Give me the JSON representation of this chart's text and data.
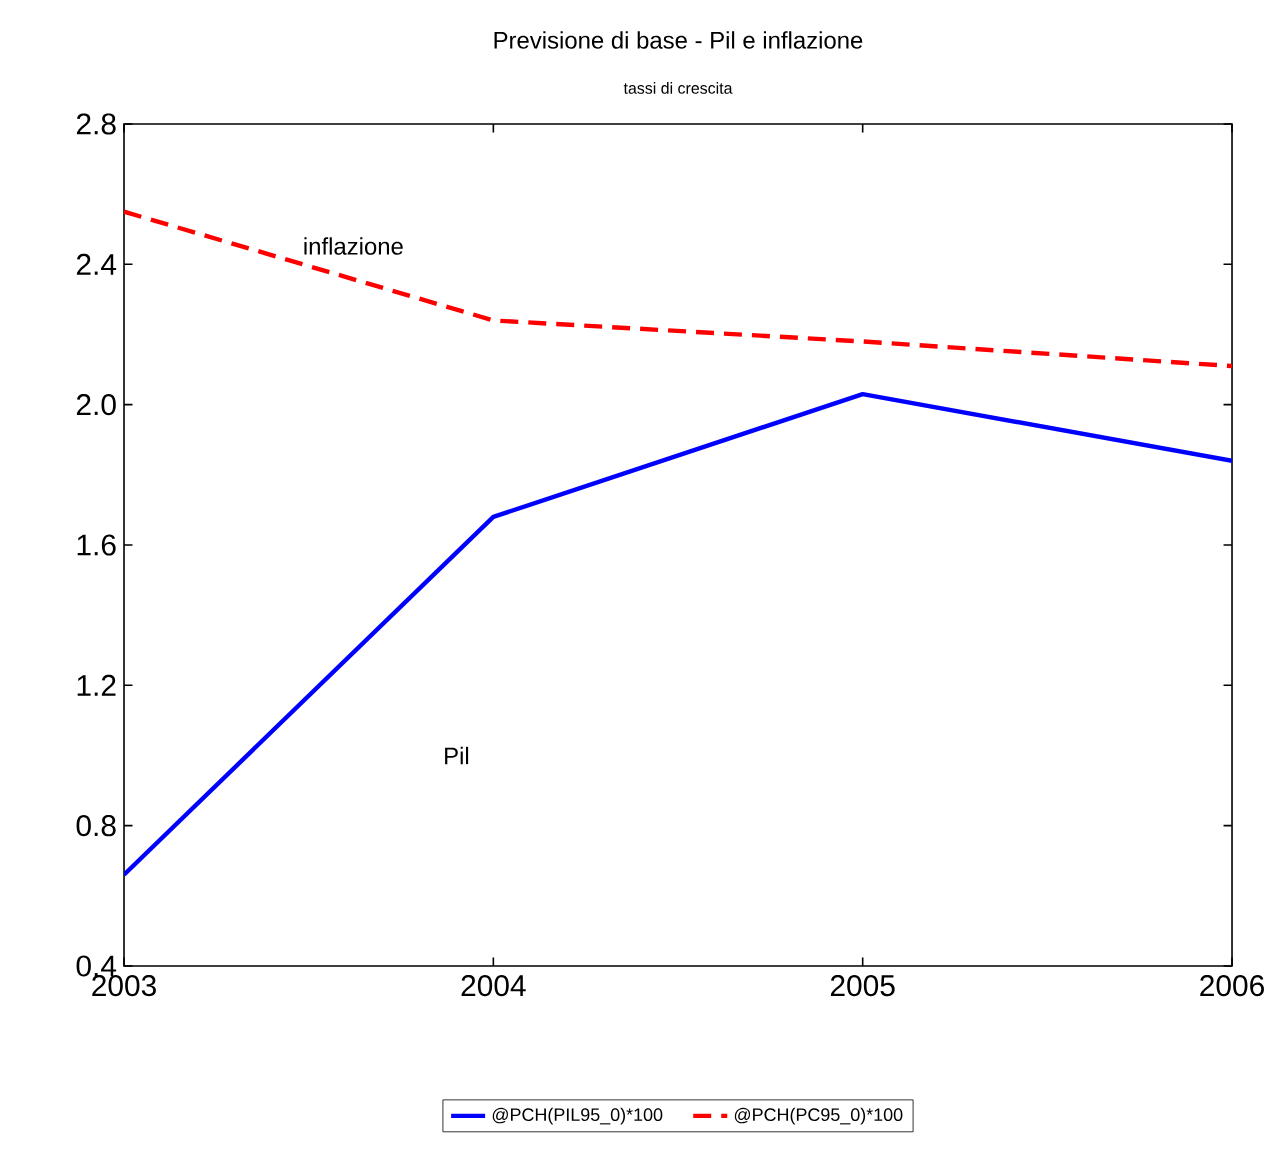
{
  "chart_data": {
    "type": "line",
    "title": "Previsione di base - Pil e inflazione",
    "subtitle": "tassi di crescita",
    "x": [
      2003,
      2004,
      2005,
      2006
    ],
    "series": [
      {
        "name": "@PCH(PIL95_0)*100",
        "color": "#0000ff",
        "line_style": "solid",
        "values": [
          0.66,
          1.68,
          2.03,
          1.84
        ]
      },
      {
        "name": "@PCH(PC95_0)*100",
        "color": "#ff0000",
        "line_style": "dashed",
        "values": [
          2.55,
          2.24,
          2.18,
          2.11
        ]
      }
    ],
    "xlim": [
      2003,
      2006
    ],
    "xticks": [
      2003,
      2004,
      2005,
      2006
    ],
    "ylim": [
      0.4,
      2.8
    ],
    "yticks": [
      {
        "value": 0.4,
        "label": "0.4"
      },
      {
        "value": 0.8,
        "label": "0.8"
      },
      {
        "value": 1.2,
        "label": "1.2"
      },
      {
        "value": 1.6,
        "label": "1.6"
      },
      {
        "value": 2.0,
        "label": "2.0"
      },
      {
        "value": 2.4,
        "label": "2.4"
      },
      {
        "value": 2.8,
        "label": "2.8"
      }
    ],
    "annotations": [
      "inflazione",
      "Pil"
    ],
    "legend": "bottom",
    "grid": false
  }
}
